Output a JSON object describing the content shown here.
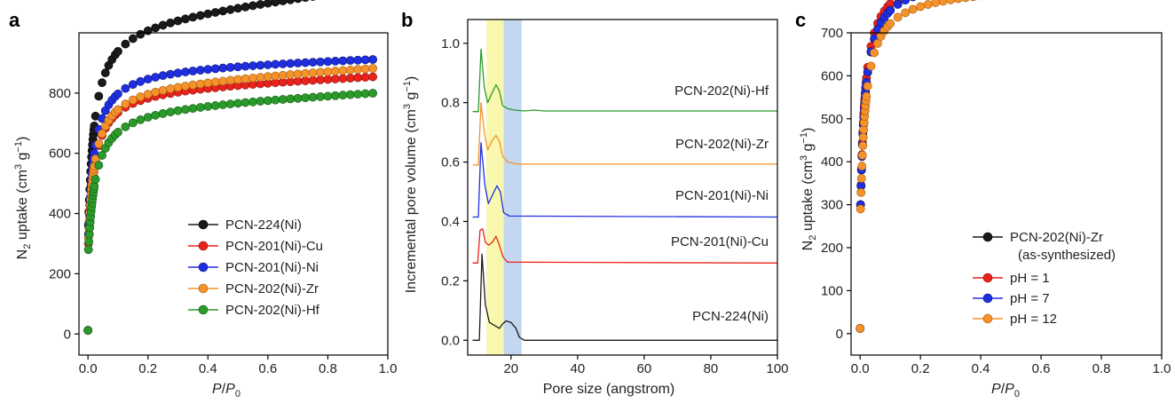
{
  "panels": [
    {
      "letter": "a",
      "xlabel_var": "P",
      "xlabel_sep": "/",
      "xlabel_sub": "0",
      "ylabel": [
        "N",
        "2",
        " uptake (cm",
        "3",
        " g",
        "−1",
        ")"
      ],
      "legend": [
        "PCN-224(Ni)",
        "PCN-201(Ni)-Cu",
        "PCN-201(Ni)-Ni",
        "PCN-202(Ni)-Zr",
        "PCN-202(Ni)-Hf"
      ]
    },
    {
      "letter": "b",
      "xlabel": "Pore size (angstrom)",
      "ylabel": [
        "Incremental pore volume (cm",
        "3",
        " g",
        "−1",
        ")"
      ],
      "labels": [
        "PCN-202(Ni)-Hf",
        "PCN-202(Ni)-Zr",
        "PCN-201(Ni)-Ni",
        "PCN-201(Ni)-Cu",
        "PCN-224(Ni)"
      ]
    },
    {
      "letter": "c",
      "xlabel_var": "P",
      "xlabel_sep": "/",
      "xlabel_sub": "0",
      "ylabel": [
        "N",
        "2",
        " uptake (cm",
        "3",
        " g",
        "−1",
        ")"
      ],
      "legend": [
        "PCN-202(Ni)-Zr",
        "(as-synthesized)",
        "pH = 1",
        "pH = 7",
        "pH = 12"
      ]
    }
  ],
  "colors": {
    "black": "#1a1a1a",
    "red": "#e8231b",
    "blue": "#1f2fe0",
    "orange": "#f5922a",
    "green": "#2a9a2a",
    "yellow_band": "#f7f7a6",
    "blue_band": "#bcd4ee"
  },
  "chart_data": [
    {
      "type": "scatter",
      "xlim": [
        -0.03,
        1.0
      ],
      "ylim": [
        -70,
        1000
      ],
      "xticks": [
        0.0,
        0.2,
        0.4,
        0.6,
        0.8,
        1.0
      ],
      "xtick_labels": [
        "0.0",
        "0.2",
        "0.4",
        "0.6",
        "0.8",
        "1.0"
      ],
      "yticks": [
        0,
        200,
        400,
        600,
        800
      ],
      "ytick_labels": [
        "0",
        "200",
        "400",
        "600",
        "800"
      ],
      "series": [
        {
          "name": "PCN-224(Ni)",
          "color": "black",
          "shape": {
            "q0": 360,
            "qm": 742,
            "k": 0.02,
            "s": 120
          }
        },
        {
          "name": "PCN-201(Ni)-Cu",
          "color": "red",
          "shape": {
            "q0": 300,
            "qm": 565,
            "k": 0.02,
            "s": 42
          }
        },
        {
          "name": "PCN-201(Ni)-Ni",
          "color": "blue",
          "shape": {
            "q0": 330,
            "qm": 608,
            "k": 0.02,
            "s": 30
          }
        },
        {
          "name": "PCN-202(Ni)-Zr",
          "color": "orange",
          "shape": {
            "q0": 320,
            "qm": 555,
            "k": 0.022,
            "s": 58
          }
        },
        {
          "name": "PCN-202(Ni)-Hf",
          "color": "green",
          "shape": {
            "q0": 280,
            "qm": 515,
            "k": 0.024,
            "s": 50
          }
        }
      ]
    },
    {
      "type": "line",
      "xlim": [
        7,
        100
      ],
      "ylim": [
        -0.05,
        1.08
      ],
      "xticks": [
        20,
        40,
        60,
        80,
        100
      ],
      "xtick_labels": [
        "20",
        "40",
        "60",
        "80",
        "100"
      ],
      "yticks": [
        0.0,
        0.2,
        0.4,
        0.6,
        0.8,
        1.0
      ],
      "ytick_labels": [
        "0.0",
        "0.2",
        "0.4",
        "0.6",
        "0.8",
        "1.0"
      ],
      "bands": [
        {
          "from": 12.6,
          "to": 17.8,
          "color": "yellow_band"
        },
        {
          "from": 17.8,
          "to": 23.2,
          "color": "blue_band"
        }
      ],
      "series": [
        {
          "name": "PCN-202(Ni)-Hf",
          "color": "green",
          "baseline": 0.77,
          "points": [
            [
              8.5,
              0.77
            ],
            [
              10.2,
              0.77
            ],
            [
              11.0,
              0.98
            ],
            [
              12.0,
              0.85
            ],
            [
              13.0,
              0.8
            ],
            [
              14.2,
              0.83
            ],
            [
              15.5,
              0.86
            ],
            [
              16.5,
              0.84
            ],
            [
              17.5,
              0.79
            ],
            [
              19.0,
              0.78
            ],
            [
              21,
              0.775
            ],
            [
              24,
              0.772
            ],
            [
              27,
              0.775
            ],
            [
              30,
              0.772
            ],
            [
              100,
              0.772
            ]
          ]
        },
        {
          "name": "PCN-202(Ni)-Zr",
          "color": "orange",
          "baseline": 0.59,
          "points": [
            [
              8.5,
              0.59
            ],
            [
              10.2,
              0.59
            ],
            [
              11.0,
              0.8
            ],
            [
              12.0,
              0.7
            ],
            [
              13.0,
              0.64
            ],
            [
              14.2,
              0.67
            ],
            [
              15.5,
              0.69
            ],
            [
              16.5,
              0.67
            ],
            [
              17.5,
              0.62
            ],
            [
              19.0,
              0.6
            ],
            [
              22,
              0.593
            ],
            [
              25,
              0.593
            ],
            [
              100,
              0.593
            ]
          ]
        },
        {
          "name": "PCN-201(Ni)-Ni",
          "color": "blue",
          "baseline": 0.415,
          "points": [
            [
              8.5,
              0.415
            ],
            [
              10.2,
              0.415
            ],
            [
              11.0,
              0.665
            ],
            [
              12.2,
              0.52
            ],
            [
              13.2,
              0.46
            ],
            [
              14.5,
              0.49
            ],
            [
              15.8,
              0.52
            ],
            [
              16.8,
              0.5
            ],
            [
              17.8,
              0.43
            ],
            [
              19.5,
              0.418
            ],
            [
              100,
              0.415
            ]
          ]
        },
        {
          "name": "PCN-201(Ni)-Cu",
          "color": "red",
          "baseline": 0.26,
          "points": [
            [
              8.5,
              0.26
            ],
            [
              10.0,
              0.26
            ],
            [
              10.7,
              0.37
            ],
            [
              11.5,
              0.375
            ],
            [
              12.3,
              0.33
            ],
            [
              13.3,
              0.32
            ],
            [
              14.4,
              0.33
            ],
            [
              15.5,
              0.35
            ],
            [
              16.5,
              0.32
            ],
            [
              17.6,
              0.28
            ],
            [
              19.0,
              0.263
            ],
            [
              100,
              0.26
            ]
          ]
        },
        {
          "name": "PCN-224(Ni)",
          "color": "black",
          "baseline": 0.0,
          "points": [
            [
              8.5,
              0.0
            ],
            [
              10.5,
              0.0
            ],
            [
              11.3,
              0.29
            ],
            [
              12.3,
              0.12
            ],
            [
              13.5,
              0.06
            ],
            [
              15.0,
              0.05
            ],
            [
              16.5,
              0.04
            ],
            [
              17.5,
              0.055
            ],
            [
              18.5,
              0.065
            ],
            [
              20.0,
              0.06
            ],
            [
              21.5,
              0.04
            ],
            [
              22.5,
              0.01
            ],
            [
              24,
              0.0
            ],
            [
              100,
              0.0
            ]
          ]
        }
      ]
    },
    {
      "type": "scatter",
      "xlim": [
        -0.03,
        1.0
      ],
      "ylim": [
        -50,
        700
      ],
      "xticks": [
        0.0,
        0.2,
        0.4,
        0.6,
        0.8,
        1.0
      ],
      "xtick_labels": [
        "0.0",
        "0.2",
        "0.4",
        "0.6",
        "0.8",
        "1.0"
      ],
      "yticks": [
        0,
        100,
        200,
        300,
        400,
        500,
        600,
        700
      ],
      "ytick_labels": [
        "0",
        "100",
        "200",
        "300",
        "400",
        "500",
        "600",
        "700"
      ],
      "series": [
        {
          "name": "PCN-202(Ni)-Zr (as-synthesized)",
          "color": "black",
          "shape": {
            "q0": 300,
            "qm": 575,
            "k": 0.015,
            "s": 45
          }
        },
        {
          "name": "pH = 1",
          "color": "red",
          "shape": {
            "q0": 300,
            "qm": 598,
            "k": 0.015,
            "s": 20
          }
        },
        {
          "name": "pH = 7",
          "color": "blue",
          "shape": {
            "q0": 300,
            "qm": 578,
            "k": 0.015,
            "s": 22
          }
        },
        {
          "name": "pH = 12",
          "color": "orange",
          "shape": {
            "q0": 290,
            "qm": 555,
            "k": 0.017,
            "s": 22
          }
        }
      ]
    }
  ]
}
